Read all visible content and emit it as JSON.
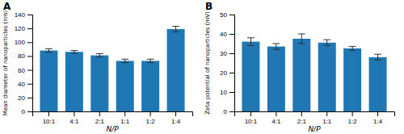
{
  "chart_data": [
    {
      "type": "bar",
      "title": "A",
      "categories": [
        "10:1",
        "4:1",
        "2:1",
        "1:1",
        "1:2",
        "1:4"
      ],
      "values": [
        88,
        86,
        81,
        73,
        73,
        119
      ],
      "errors": [
        2.5,
        2.0,
        2.5,
        2.5,
        2.5,
        4.0
      ],
      "xlabel": "N/P",
      "ylabel": "Mean diameter of nanoparticles (nm)",
      "ylim": [
        0,
        140
      ],
      "yticks": [
        0,
        20,
        40,
        60,
        80,
        100,
        120,
        140
      ]
    },
    {
      "type": "bar",
      "title": "B",
      "categories": [
        "10:1",
        "4:1",
        "2:1",
        "1:1",
        "1:2",
        "1:4"
      ],
      "values": [
        36,
        33.5,
        37.5,
        35.5,
        32.5,
        28
      ],
      "errors": [
        2.0,
        1.5,
        2.5,
        1.5,
        1.0,
        1.5
      ],
      "xlabel": "N/P",
      "ylabel": "Zeta potential of nanoparticles (mV)",
      "ylim": [
        0,
        50
      ],
      "yticks": [
        0,
        10,
        20,
        30,
        40,
        50
      ]
    }
  ]
}
